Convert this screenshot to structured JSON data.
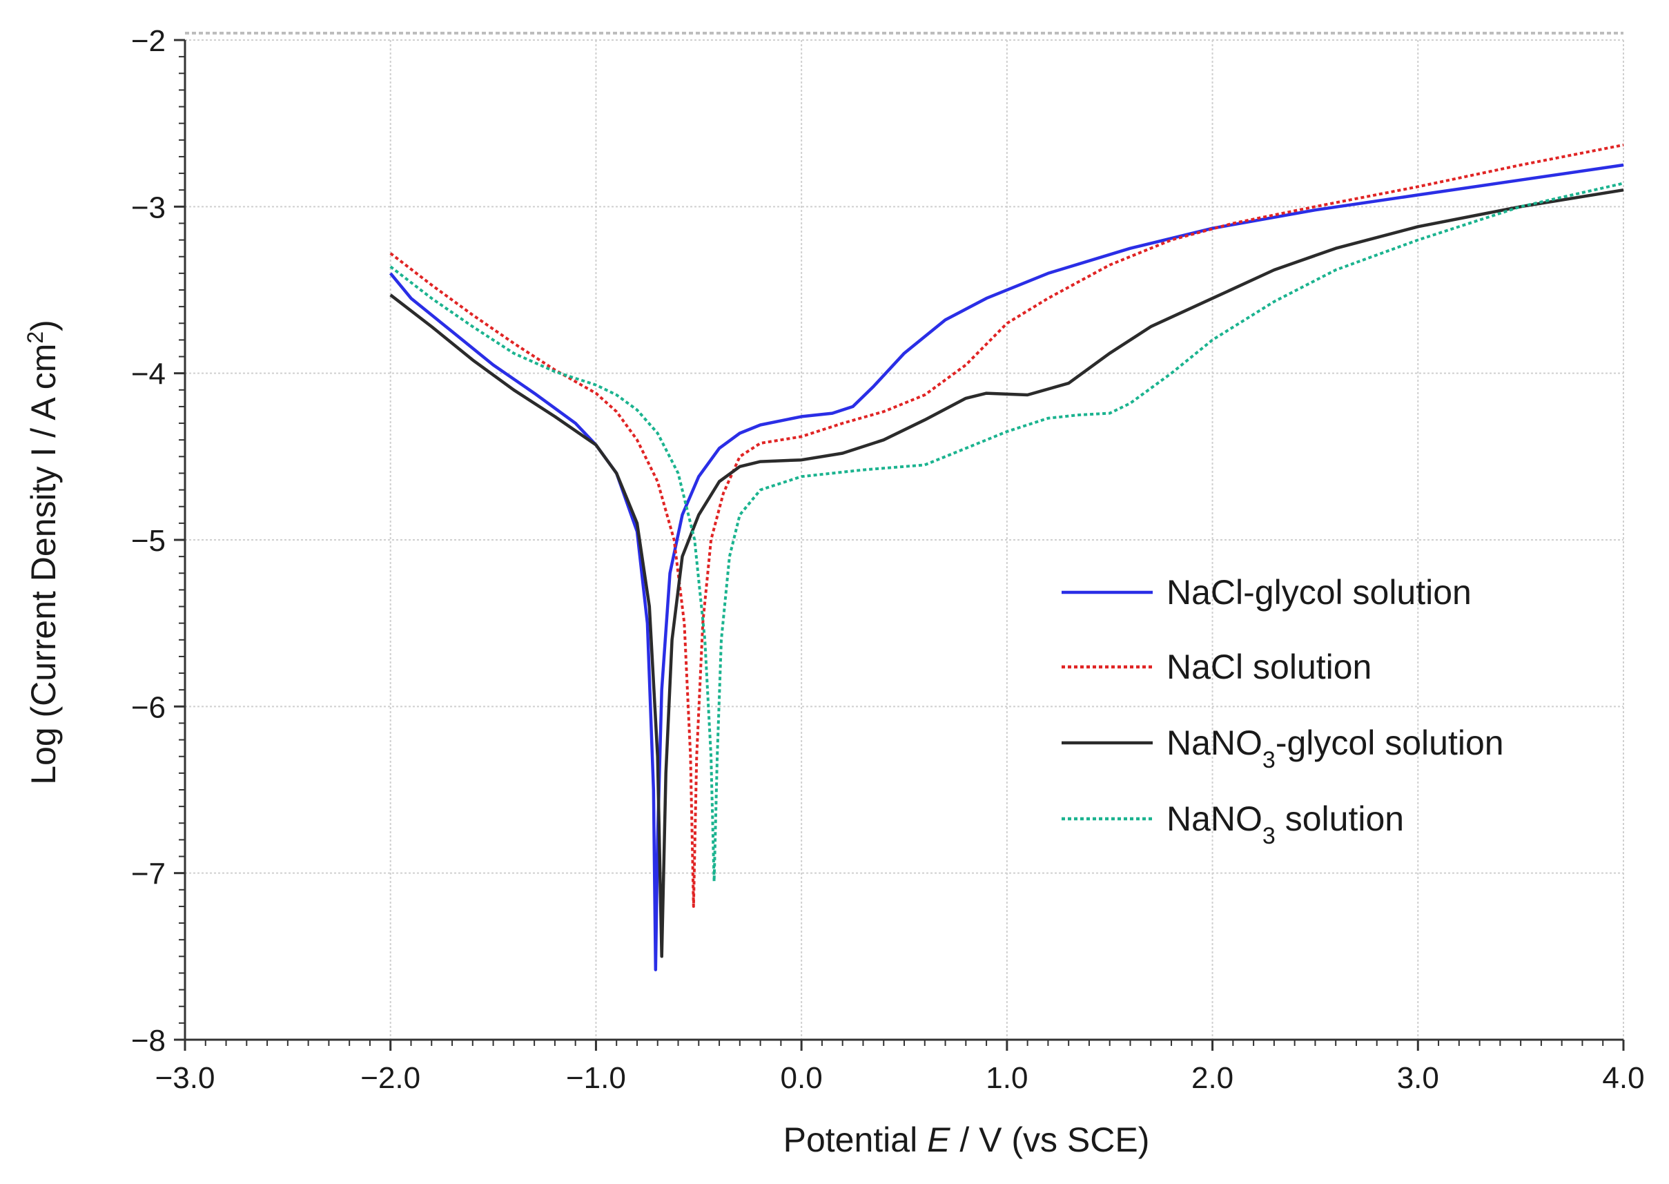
{
  "chart_data": {
    "type": "line",
    "title": "",
    "xlabel": "Potential E / V  (vs SCE)",
    "xlabel_parts": [
      "Potential ",
      "E",
      " / V  (vs SCE)"
    ],
    "ylabel": "Log (Current Density I / A cm2)",
    "ylabel_parts": [
      "Log (Current Density I / A cm",
      "2",
      ")"
    ],
    "xlim": [
      -3.0,
      4.0
    ],
    "ylim": [
      -8,
      -2
    ],
    "xticks": [
      -3.0,
      -2.0,
      -1.0,
      0.0,
      1.0,
      2.0,
      3.0,
      4.0
    ],
    "xtick_labels": [
      "−3.0",
      "−2.0",
      "−1.0",
      "0.0",
      "1.0",
      "2.0",
      "3.0",
      "4.0"
    ],
    "yticks": [
      -8,
      -7,
      -6,
      -5,
      -4,
      -3,
      -2
    ],
    "ytick_labels": [
      "−8",
      "−7",
      "−6",
      "−5",
      "−4",
      "−3",
      "−2"
    ],
    "grid": true,
    "legend_position": "center-right",
    "series": [
      {
        "name": "NaCl-glycol solution",
        "legend_parts": [
          "NaCl-glycol solution"
        ],
        "color": "#2a2ee6",
        "dash": "solid",
        "points": [
          [
            -2.0,
            -3.4
          ],
          [
            -1.9,
            -3.55
          ],
          [
            -1.7,
            -3.75
          ],
          [
            -1.5,
            -3.95
          ],
          [
            -1.3,
            -4.12
          ],
          [
            -1.1,
            -4.3
          ],
          [
            -1.0,
            -4.43
          ],
          [
            -0.9,
            -4.6
          ],
          [
            -0.8,
            -4.95
          ],
          [
            -0.75,
            -5.5
          ],
          [
            -0.72,
            -6.5
          ],
          [
            -0.71,
            -7.58
          ],
          [
            -0.7,
            -6.8
          ],
          [
            -0.68,
            -5.9
          ],
          [
            -0.64,
            -5.2
          ],
          [
            -0.58,
            -4.85
          ],
          [
            -0.5,
            -4.62
          ],
          [
            -0.4,
            -4.45
          ],
          [
            -0.3,
            -4.36
          ],
          [
            -0.2,
            -4.31
          ],
          [
            0.0,
            -4.26
          ],
          [
            0.15,
            -4.24
          ],
          [
            0.25,
            -4.2
          ],
          [
            0.35,
            -4.08
          ],
          [
            0.5,
            -3.88
          ],
          [
            0.7,
            -3.68
          ],
          [
            0.9,
            -3.55
          ],
          [
            1.2,
            -3.4
          ],
          [
            1.6,
            -3.25
          ],
          [
            2.0,
            -3.13
          ],
          [
            2.5,
            -3.02
          ],
          [
            3.0,
            -2.93
          ],
          [
            3.5,
            -2.84
          ],
          [
            4.0,
            -2.75
          ]
        ]
      },
      {
        "name": "NaCl solution",
        "legend_parts": [
          "NaCl solution"
        ],
        "color": "#e02424",
        "dash": "dotted",
        "points": [
          [
            -2.0,
            -3.28
          ],
          [
            -1.8,
            -3.47
          ],
          [
            -1.6,
            -3.65
          ],
          [
            -1.4,
            -3.82
          ],
          [
            -1.2,
            -3.98
          ],
          [
            -1.0,
            -4.12
          ],
          [
            -0.9,
            -4.23
          ],
          [
            -0.8,
            -4.4
          ],
          [
            -0.7,
            -4.65
          ],
          [
            -0.62,
            -5.0
          ],
          [
            -0.57,
            -5.5
          ],
          [
            -0.54,
            -6.3
          ],
          [
            -0.525,
            -7.2
          ],
          [
            -0.51,
            -6.3
          ],
          [
            -0.48,
            -5.5
          ],
          [
            -0.44,
            -5.0
          ],
          [
            -0.38,
            -4.72
          ],
          [
            -0.3,
            -4.5
          ],
          [
            -0.2,
            -4.42
          ],
          [
            -0.1,
            -4.4
          ],
          [
            0.0,
            -4.38
          ],
          [
            0.2,
            -4.3
          ],
          [
            0.4,
            -4.23
          ],
          [
            0.6,
            -4.13
          ],
          [
            0.8,
            -3.95
          ],
          [
            1.0,
            -3.7
          ],
          [
            1.2,
            -3.55
          ],
          [
            1.5,
            -3.35
          ],
          [
            1.8,
            -3.2
          ],
          [
            2.1,
            -3.1
          ],
          [
            2.5,
            -3.0
          ],
          [
            3.0,
            -2.88
          ],
          [
            3.5,
            -2.75
          ],
          [
            4.0,
            -2.63
          ]
        ]
      },
      {
        "name": "NaNO3-glycol solution",
        "legend_parts": [
          "NaNO",
          "3",
          "-glycol solution"
        ],
        "color": "#2b2b2b",
        "dash": "solid",
        "points": [
          [
            -2.0,
            -3.53
          ],
          [
            -1.8,
            -3.72
          ],
          [
            -1.6,
            -3.92
          ],
          [
            -1.4,
            -4.1
          ],
          [
            -1.2,
            -4.26
          ],
          [
            -1.0,
            -4.43
          ],
          [
            -0.9,
            -4.6
          ],
          [
            -0.8,
            -4.9
          ],
          [
            -0.74,
            -5.4
          ],
          [
            -0.7,
            -6.3
          ],
          [
            -0.68,
            -7.5
          ],
          [
            -0.66,
            -6.4
          ],
          [
            -0.63,
            -5.6
          ],
          [
            -0.58,
            -5.1
          ],
          [
            -0.5,
            -4.85
          ],
          [
            -0.4,
            -4.65
          ],
          [
            -0.3,
            -4.56
          ],
          [
            -0.2,
            -4.53
          ],
          [
            0.0,
            -4.52
          ],
          [
            0.2,
            -4.48
          ],
          [
            0.4,
            -4.4
          ],
          [
            0.6,
            -4.28
          ],
          [
            0.8,
            -4.15
          ],
          [
            0.9,
            -4.12
          ],
          [
            1.1,
            -4.13
          ],
          [
            1.3,
            -4.06
          ],
          [
            1.5,
            -3.88
          ],
          [
            1.7,
            -3.72
          ],
          [
            2.0,
            -3.55
          ],
          [
            2.3,
            -3.38
          ],
          [
            2.6,
            -3.25
          ],
          [
            3.0,
            -3.12
          ],
          [
            3.5,
            -3.0
          ],
          [
            4.0,
            -2.9
          ]
        ]
      },
      {
        "name": "NaNO3 solution",
        "legend_parts": [
          "NaNO",
          "3",
          " solution"
        ],
        "color": "#1bb38f",
        "dash": "dotted",
        "points": [
          [
            -2.0,
            -3.36
          ],
          [
            -1.8,
            -3.55
          ],
          [
            -1.6,
            -3.72
          ],
          [
            -1.4,
            -3.88
          ],
          [
            -1.2,
            -3.99
          ],
          [
            -1.0,
            -4.07
          ],
          [
            -0.9,
            -4.13
          ],
          [
            -0.8,
            -4.22
          ],
          [
            -0.7,
            -4.36
          ],
          [
            -0.6,
            -4.6
          ],
          [
            -0.52,
            -5.0
          ],
          [
            -0.47,
            -5.6
          ],
          [
            -0.44,
            -6.3
          ],
          [
            -0.425,
            -7.05
          ],
          [
            -0.41,
            -6.3
          ],
          [
            -0.39,
            -5.6
          ],
          [
            -0.35,
            -5.1
          ],
          [
            -0.3,
            -4.85
          ],
          [
            -0.2,
            -4.7
          ],
          [
            0.0,
            -4.62
          ],
          [
            0.3,
            -4.58
          ],
          [
            0.6,
            -4.55
          ],
          [
            0.8,
            -4.45
          ],
          [
            1.0,
            -4.35
          ],
          [
            1.2,
            -4.27
          ],
          [
            1.35,
            -4.25
          ],
          [
            1.5,
            -4.24
          ],
          [
            1.6,
            -4.18
          ],
          [
            1.8,
            -4.0
          ],
          [
            2.0,
            -3.8
          ],
          [
            2.3,
            -3.57
          ],
          [
            2.6,
            -3.38
          ],
          [
            3.0,
            -3.2
          ],
          [
            3.5,
            -3.0
          ],
          [
            4.0,
            -2.86
          ]
        ]
      }
    ]
  }
}
